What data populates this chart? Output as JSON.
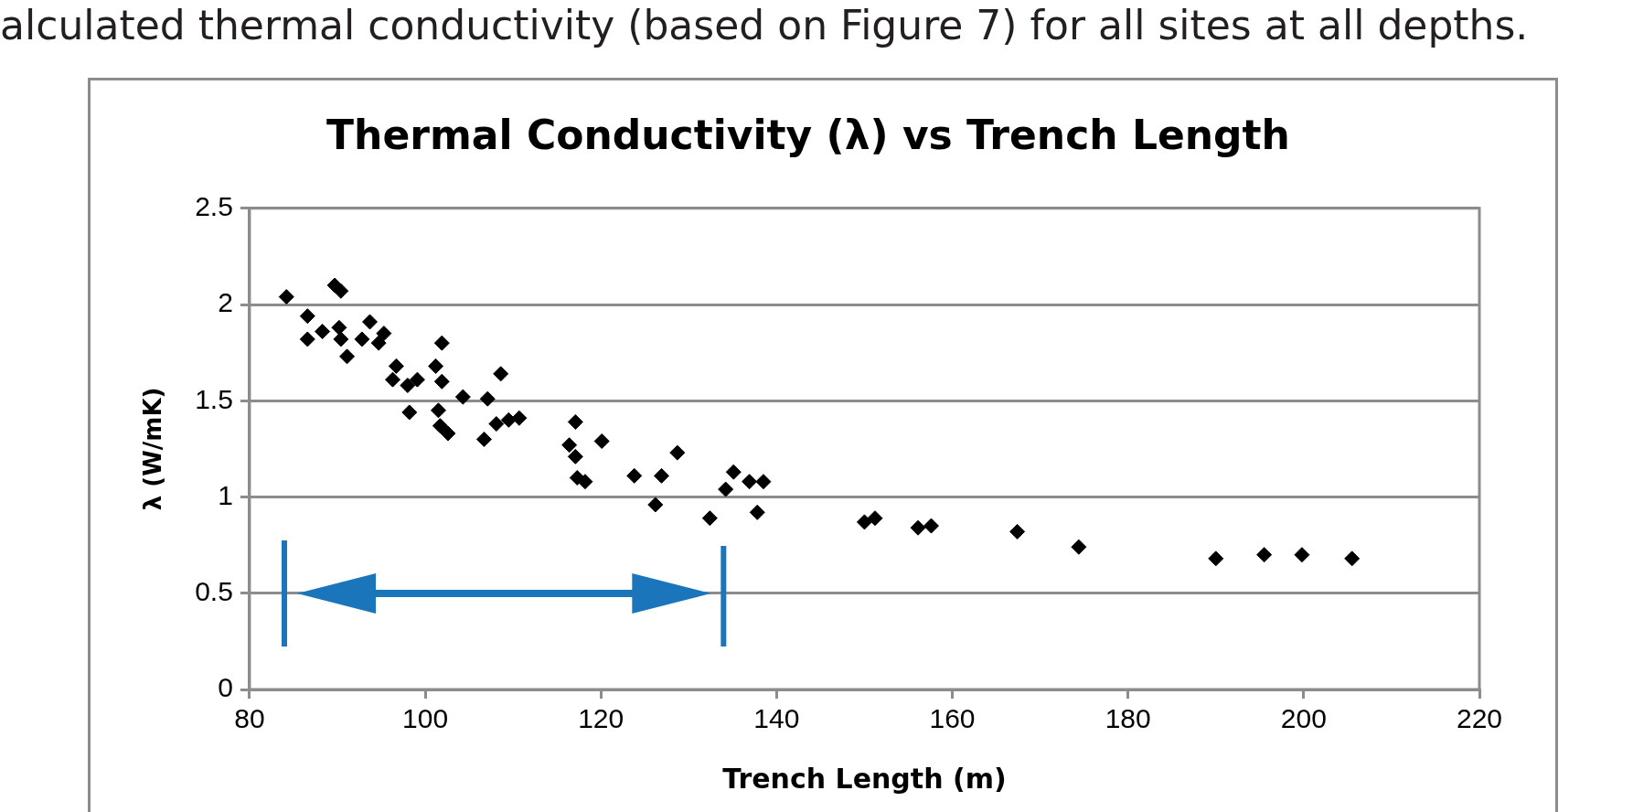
{
  "chart_data": {
    "type": "scatter",
    "title": "Thermal Conductivity (λ) vs Trench Length",
    "xlabel": "Trench Length (m)",
    "ylabel": "λ (W/mK)",
    "annotations": [
      "alculated thermal conductivity (based on Figure 7) for all sites at all depths."
    ],
    "series": [
      {
        "color": "#000000",
        "x": [
          84.2,
          89.7,
          90.4,
          86.6,
          86.6,
          88.3,
          90.2,
          91.1,
          90.4,
          93.7,
          95.3,
          94.7,
          92.8,
          101.9,
          96.7,
          96.3,
          98.0,
          99.1,
          101.2,
          101.9,
          108.6,
          104.3,
          107.1,
          98.2,
          101.5,
          101.7,
          102.6,
          106.7,
          108.1,
          109.5,
          110.7,
          117.1,
          116.4,
          117.1,
          120.1,
          117.3,
          118.2,
          123.8,
          126.9,
          128.7,
          126.2,
          132.4,
          135.1,
          134.2,
          136.9,
          138.5,
          137.8,
          150.0,
          151.2,
          156.1,
          157.6,
          167.4,
          174.4,
          190.0,
          195.5,
          199.8,
          205.5
        ],
        "values": [
          2.04,
          2.1,
          2.07,
          1.94,
          1.82,
          1.86,
          1.88,
          1.73,
          1.82,
          1.91,
          1.85,
          1.8,
          1.82,
          1.8,
          1.68,
          1.61,
          1.58,
          1.61,
          1.68,
          1.6,
          1.64,
          1.52,
          1.51,
          1.44,
          1.45,
          1.37,
          1.33,
          1.3,
          1.38,
          1.4,
          1.41,
          1.39,
          1.27,
          1.21,
          1.29,
          1.1,
          1.08,
          1.11,
          1.11,
          1.23,
          0.96,
          0.89,
          1.13,
          1.04,
          1.08,
          1.08,
          0.92,
          0.87,
          0.89,
          0.84,
          0.85,
          0.82,
          0.74,
          0.68,
          0.7,
          0.7,
          0.68
        ]
      }
    ],
    "xlim": [
      80,
      220
    ],
    "xticks": [
      80,
      100,
      120,
      140,
      160,
      180,
      200,
      220
    ],
    "ylim": [
      0,
      2.5
    ],
    "yticks": [
      0,
      0.5,
      1,
      1.5,
      2,
      2.5
    ],
    "grid": "y",
    "legend": false,
    "marker": "diamond"
  }
}
